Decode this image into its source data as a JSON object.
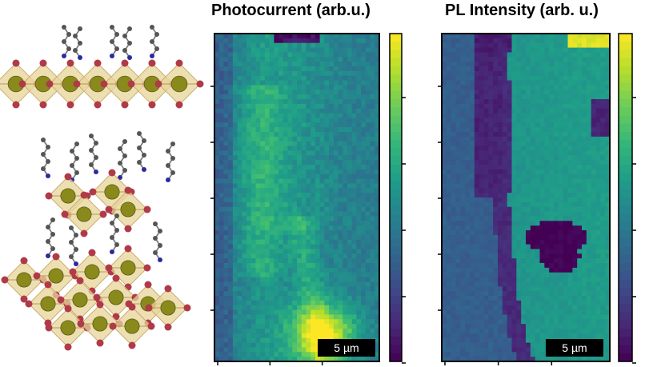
{
  "left_illustration": {
    "icon": "layered-perovskite-crystal-structure-icon",
    "colors": {
      "octahedron": "#e8d49a",
      "metal_atom": "#8a8a1c",
      "halide_atom": "#b03a48",
      "carbon_atom": "#555555",
      "nitrogen_atom": "#2a2aa0"
    }
  },
  "panels": [
    {
      "title": "Photocurrent (arb.u.)",
      "scale_bar_label": "5 µm",
      "colormap": "viridis",
      "colorbar_tick_count": 5,
      "x_tick_count": 3,
      "y_tick_count": 5
    },
    {
      "title": "PL Intensity (arb. u.)",
      "scale_bar_label": "5 µm",
      "colormap": "viridis",
      "colorbar_tick_count": 5,
      "x_tick_count": 3,
      "y_tick_count": 5
    }
  ]
}
